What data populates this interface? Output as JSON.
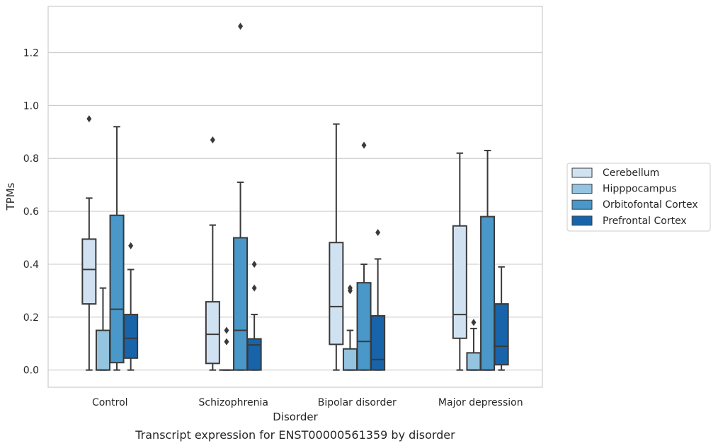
{
  "caption": "Transcript expression for ENST00000561359 by disorder",
  "chart_data": {
    "type": "box",
    "title": "",
    "xlabel": "Disorder",
    "ylabel": "TPMs",
    "ylim": [
      -0.065,
      1.375
    ],
    "yticks": [
      "0.0",
      "0.2",
      "0.4",
      "0.6",
      "0.8",
      "1.0",
      "1.2"
    ],
    "ytick_values": [
      0.0,
      0.2,
      0.4,
      0.6,
      0.8,
      1.0,
      1.2
    ],
    "grid": "horizontal",
    "legend_position": "right",
    "categories": [
      "Control",
      "Schizophrenia",
      "Bipolar disorder",
      "Major depression"
    ],
    "series": [
      {
        "name": "Cerebellum",
        "color": "#d0e1f2",
        "boxes": [
          {
            "min": 0.0,
            "q1": 0.25,
            "median": 0.38,
            "q3": 0.495,
            "max": 0.65,
            "outliers": [
              0.95
            ]
          },
          {
            "min": 0.0,
            "q1": 0.025,
            "median": 0.135,
            "q3": 0.258,
            "max": 0.548,
            "outliers": [
              0.87
            ]
          },
          {
            "min": 0.0,
            "q1": 0.097,
            "median": 0.24,
            "q3": 0.482,
            "max": 0.93,
            "outliers": []
          },
          {
            "min": 0.0,
            "q1": 0.12,
            "median": 0.21,
            "q3": 0.545,
            "max": 0.82,
            "outliers": []
          }
        ]
      },
      {
        "name": "Hipppocampus",
        "color": "#94c4df",
        "boxes": [
          {
            "min": 0.0,
            "q1": 0.0,
            "median": 0.0,
            "q3": 0.15,
            "max": 0.31,
            "outliers": []
          },
          {
            "min": 0.0,
            "q1": 0.0,
            "median": 0.0,
            "q3": 0.0,
            "max": 0.0,
            "outliers": [
              0.15,
              0.107
            ]
          },
          {
            "min": 0.0,
            "q1": 0.0,
            "median": 0.0,
            "q3": 0.08,
            "max": 0.15,
            "outliers": [
              0.3,
              0.31
            ]
          },
          {
            "min": 0.0,
            "q1": 0.0,
            "median": 0.0,
            "q3": 0.065,
            "max": 0.157,
            "outliers": [
              0.18
            ]
          }
        ]
      },
      {
        "name": "Orbitofontal Cortex",
        "color": "#4a98c9",
        "boxes": [
          {
            "min": 0.0,
            "q1": 0.028,
            "median": 0.23,
            "q3": 0.585,
            "max": 0.92,
            "outliers": []
          },
          {
            "min": 0.0,
            "q1": 0.0,
            "median": 0.15,
            "q3": 0.5,
            "max": 0.71,
            "outliers": [
              1.3
            ]
          },
          {
            "min": 0.0,
            "q1": 0.0,
            "median": 0.108,
            "q3": 0.33,
            "max": 0.4,
            "outliers": [
              0.85
            ]
          },
          {
            "min": 0.0,
            "q1": 0.0,
            "median": 0.0,
            "q3": 0.58,
            "max": 0.83,
            "outliers": []
          }
        ]
      },
      {
        "name": "Prefrontal Cortex",
        "color": "#1764ab",
        "boxes": [
          {
            "min": 0.0,
            "q1": 0.045,
            "median": 0.12,
            "q3": 0.21,
            "max": 0.38,
            "outliers": [
              0.47
            ]
          },
          {
            "min": 0.0,
            "q1": 0.0,
            "median": 0.095,
            "q3": 0.118,
            "max": 0.21,
            "outliers": [
              0.31,
              0.4
            ]
          },
          {
            "min": 0.0,
            "q1": 0.0,
            "median": 0.04,
            "q3": 0.205,
            "max": 0.42,
            "outliers": [
              0.52
            ]
          },
          {
            "min": 0.0,
            "q1": 0.02,
            "median": 0.09,
            "q3": 0.25,
            "max": 0.39,
            "outliers": []
          }
        ]
      }
    ]
  }
}
